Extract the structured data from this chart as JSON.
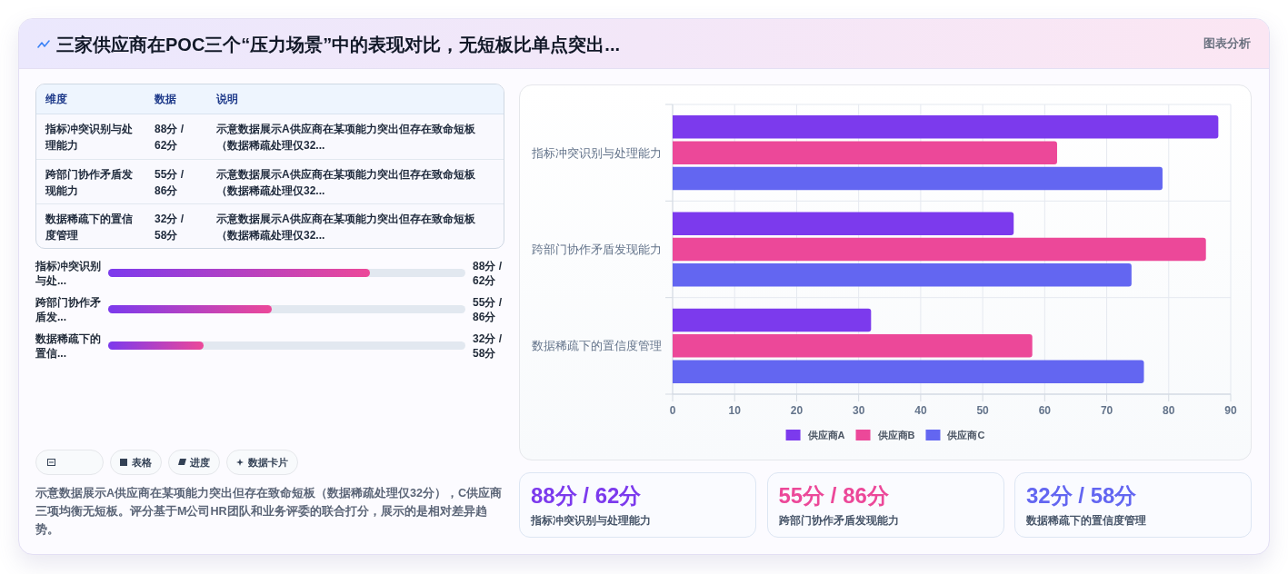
{
  "chart_data": [
    {
      "type": "bar",
      "subtitle": "图表分析",
      "orientation": "horizontal",
      "categories": [
        "指标冲突识别与处理能力",
        "跨部门协作矛盾发现能力",
        "数据稀疏下的置信度管理"
      ],
      "series": [
        {
          "name": "供应商A",
          "color": "#7c3aed",
          "values": [
            88,
            55,
            32
          ]
        },
        {
          "name": "供应商B",
          "color": "#ec4899",
          "values": [
            62,
            86,
            58
          ]
        },
        {
          "name": "供应商C",
          "color": "#6366f1",
          "values": [
            79,
            74,
            76
          ]
        }
      ],
      "xlim": [
        0,
        90
      ],
      "xticks": [
        0,
        10,
        20,
        30,
        40,
        50,
        60,
        70,
        80,
        90
      ],
      "grid": true,
      "legend": "bottom"
    },
    {
      "type": "other",
      "title": "三家供应商在POC三个“压力场景”中的表现对比，无短板比单点突出...",
      "categories": [
        "维度",
        "数据",
        "说明"
      ],
      "y_categories": [
        "指标冲突识别与处理能力",
        "跨部门协作矛盾发现能力",
        "数据稀疏下的置信度管理"
      ],
      "cell_labels": [
        [
          "88分 / 62分",
          "示意数据展示A供应商在某项能力突出但存在致命短板（数据稀疏处理仅32..."
        ],
        [
          "55分 / 86分",
          "示意数据展示A供应商在某项能力突出但存在致命短板（数据稀疏处理仅32..."
        ],
        [
          "32分 / 58分",
          "示意数据展示A供应商在某项能力突出但存在致命短板（数据稀疏处理仅32..."
        ]
      ]
    },
    {
      "type": "bar",
      "orientation": "horizontal",
      "categories": [
        "指标冲突识别与处...",
        "跨部门协作矛盾发...",
        "数据稀疏下的置信..."
      ],
      "values": [
        88,
        55,
        32
      ],
      "xlim": [
        0,
        120
      ],
      "color": "#7c3aed",
      "value_labels": [
        "88分 / 62分",
        "55分 / 86分",
        "32分 / 58分"
      ],
      "annotations": [
        "表格",
        "进度",
        "数据卡片",
        "示意数据展示A供应商在某项能力突出但存在致命短板（数据稀疏处理仅32分），C供应商三项均衡无短板。评分基于M公司HR团队和业务评委的联合打分，展示的是相对差异趋势。"
      ]
    },
    {
      "type": "other",
      "categories": [
        "指标冲突识别与处理能力",
        "跨部门协作矛盾发现能力",
        "数据稀疏下的置信度管理"
      ],
      "value_labels": [
        "88分 / 62分",
        "55分 / 86分",
        "32分 / 58分"
      ]
    }
  ]
}
